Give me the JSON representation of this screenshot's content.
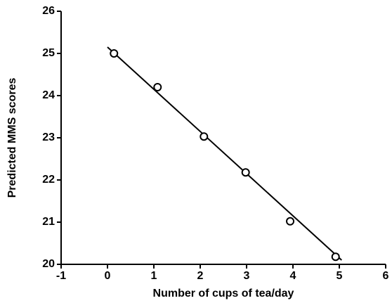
{
  "chart_data": {
    "type": "scatter",
    "xlabel": "Number of cups of tea/day",
    "ylabel": "Predicted MMS scores",
    "x": [
      0.14,
      1.08,
      2.08,
      2.98,
      3.94,
      4.92
    ],
    "y": [
      25.0,
      24.2,
      23.03,
      22.18,
      21.02,
      20.18
    ],
    "fit_line": {
      "x": [
        0,
        5.05
      ],
      "y": [
        25.15,
        20.1
      ]
    },
    "color": "#000000",
    "xlim": [
      -1,
      6
    ],
    "xticks": [
      -1,
      0,
      1,
      2,
      3,
      4,
      5,
      6
    ],
    "ylim": [
      20,
      26
    ],
    "yticks": [
      20,
      21,
      22,
      23,
      24,
      25,
      26
    ],
    "grid": false
  }
}
